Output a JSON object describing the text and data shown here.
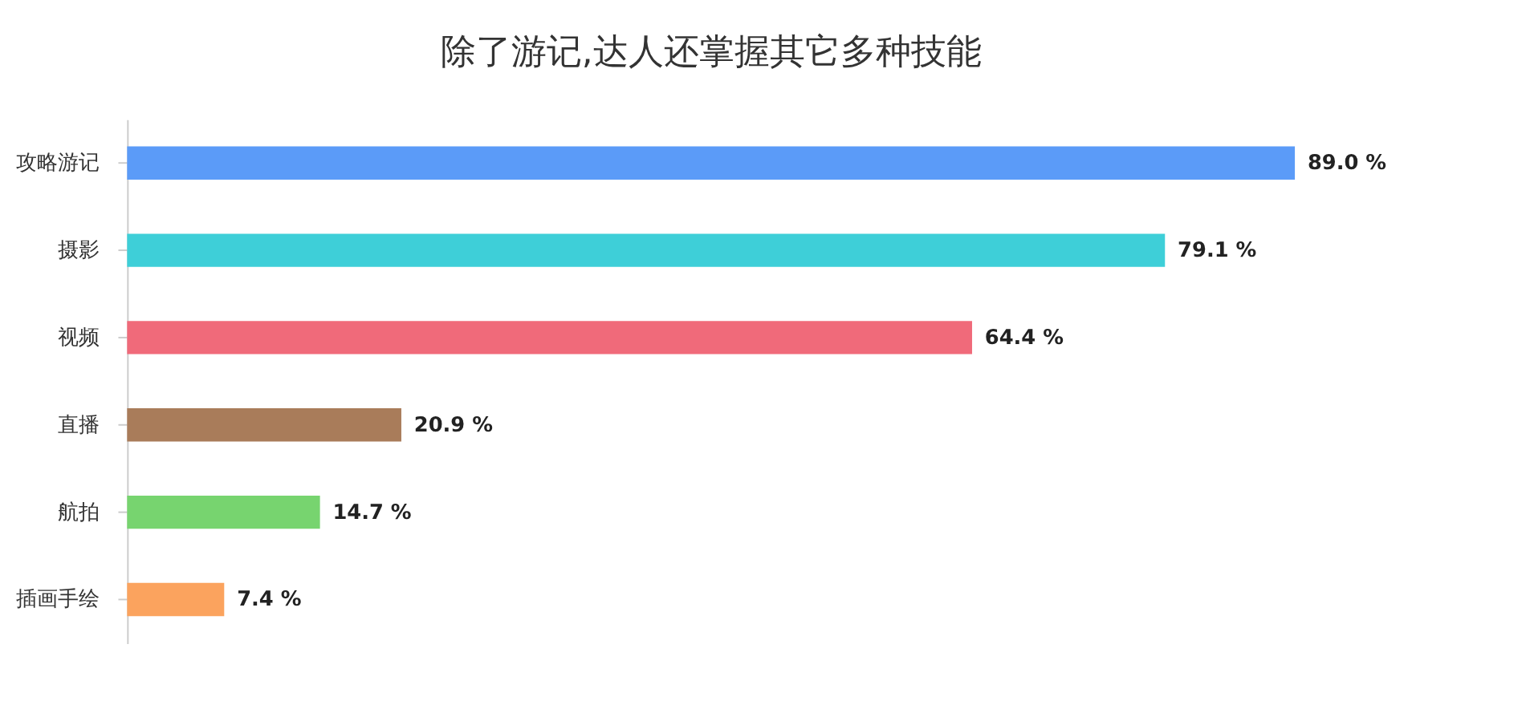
{
  "chart_data": {
    "type": "bar",
    "orientation": "horizontal",
    "title": "除了游记,达人还掌握其它多种技能",
    "categories": [
      "攻略游记",
      "摄影",
      "视频",
      "直播",
      "航拍",
      "插画手绘"
    ],
    "values": [
      89.0,
      79.1,
      64.4,
      20.9,
      14.7,
      7.4
    ],
    "colors": [
      "#5b9bf8",
      "#3ecfd8",
      "#f06a7a",
      "#a97c5a",
      "#77d46f",
      "#fba35e"
    ],
    "value_labels": [
      "89.0 %",
      "79.1 %",
      "64.4 %",
      "20.9 %",
      "14.7 %",
      "7.4 %"
    ]
  }
}
